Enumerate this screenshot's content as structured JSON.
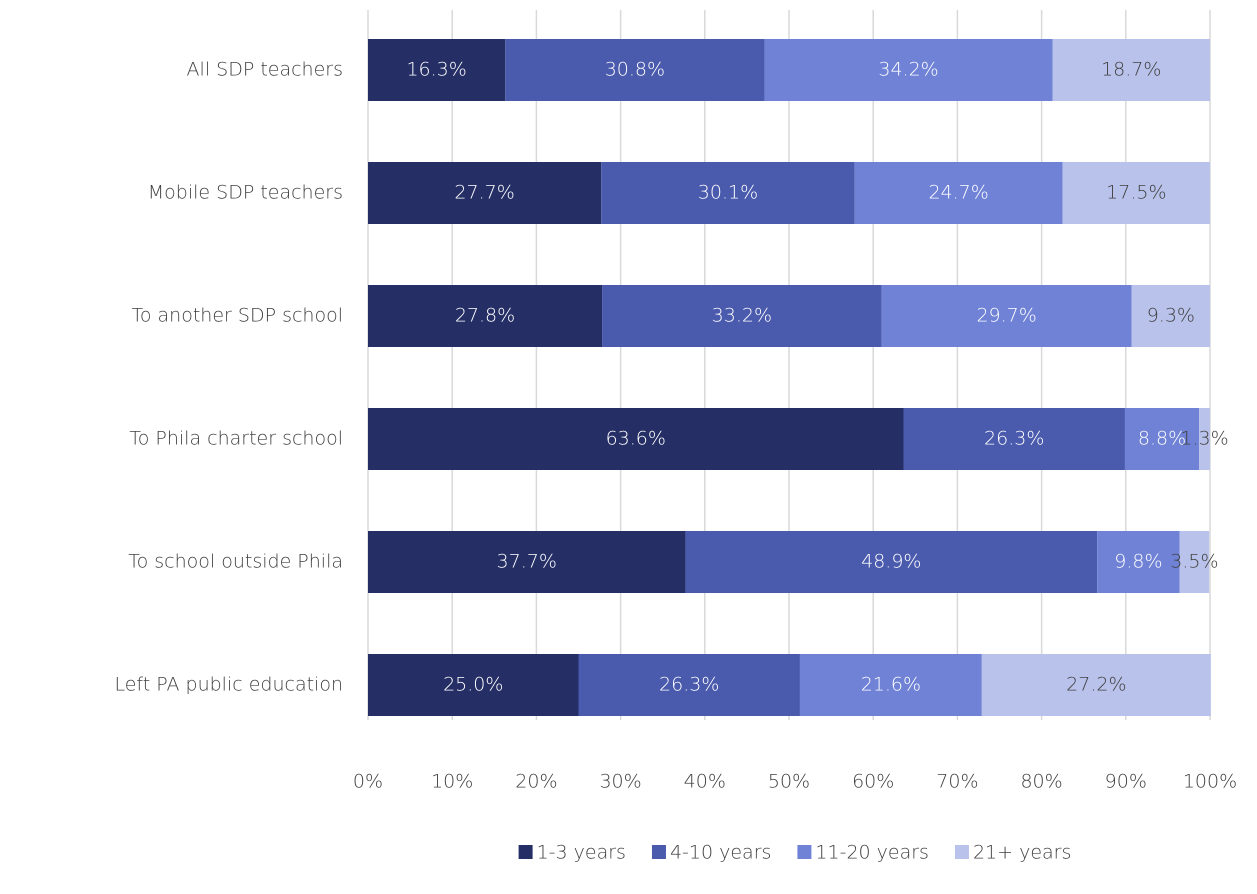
{
  "chart_data": {
    "type": "stacked-barh",
    "categories": [
      "All SDP teachers",
      "Mobile SDP teachers",
      "To another SDP school",
      "To Phila charter school",
      "To school outside Phila",
      "Left PA public education"
    ],
    "series": [
      {
        "name": "1-3 years",
        "color": "#252f66",
        "label_color": "#ffffff",
        "values": [
          16.3,
          27.7,
          27.8,
          63.6,
          37.7,
          25.0
        ],
        "value_labels": [
          "16.3%",
          "27.7%",
          "27.8%",
          "63.6%",
          "37.7%",
          "25.0%"
        ]
      },
      {
        "name": "4-10 years",
        "color": "#4a5aad",
        "label_color": "#ffffff",
        "values": [
          30.8,
          30.1,
          33.2,
          26.3,
          48.9,
          26.3
        ],
        "value_labels": [
          "30.8%",
          "30.1%",
          "33.2%",
          "26.3%",
          "48.9%",
          "26.3%"
        ]
      },
      {
        "name": "11-20 years",
        "color": "#6f82d6",
        "label_color": "#ffffff",
        "values": [
          34.2,
          24.7,
          29.7,
          8.8,
          9.8,
          21.6
        ],
        "value_labels": [
          "34.2%",
          "24.7%",
          "29.7%",
          "8.8%",
          "9.8%",
          "21.6%"
        ]
      },
      {
        "name": "21+ years",
        "color": "#b9c2ea",
        "label_color": "#404040",
        "values": [
          18.7,
          17.5,
          9.3,
          1.3,
          3.5,
          27.2
        ],
        "value_labels": [
          "18.7%",
          "17.5%",
          "9.3%",
          "1.3%",
          "3.5%",
          "27.2%"
        ]
      }
    ],
    "xlim": [
      0,
      100
    ],
    "xticks": [
      {
        "value": 0,
        "label": "0%"
      },
      {
        "value": 10,
        "label": "10%"
      },
      {
        "value": 20,
        "label": "20%"
      },
      {
        "value": 30,
        "label": "30%"
      },
      {
        "value": 40,
        "label": "40%"
      },
      {
        "value": 50,
        "label": "50%"
      },
      {
        "value": 60,
        "label": "60%"
      },
      {
        "value": 70,
        "label": "70%"
      },
      {
        "value": 80,
        "label": "80%"
      },
      {
        "value": 90,
        "label": "90%"
      },
      {
        "value": 100,
        "label": "100%"
      }
    ],
    "grid": true,
    "legend": "bottom"
  }
}
